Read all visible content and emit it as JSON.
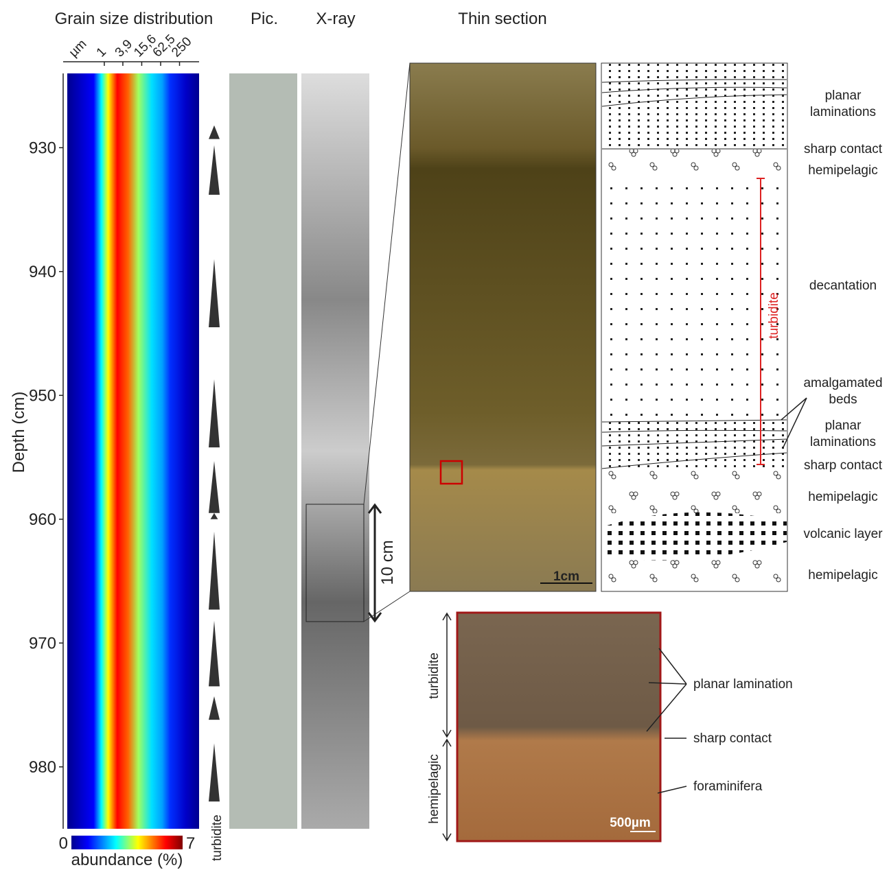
{
  "panels": {
    "grain_size": {
      "title": "Grain size distribution",
      "x_unit": "µm",
      "xscale": "log",
      "xlim": [
        0.066,
        1050
      ],
      "xticks": [
        1,
        {
          "value": 3.9,
          "label": "3,9"
        },
        {
          "value": 15.6,
          "label": "15,6"
        },
        {
          "value": 62.5,
          "label": "62,5"
        },
        250
      ],
      "y_label": "Depth (cm)",
      "ylim": [
        924,
        985
      ],
      "yticks": [
        930,
        940,
        950,
        960,
        970,
        980
      ],
      "colorbar": {
        "lim": [
          0,
          7
        ],
        "ticks": [
          0,
          7
        ],
        "label": "abundance (%)"
      },
      "turbidite_label": "turbidite",
      "turbidites": [
        [
          928.2,
          929.3
        ],
        [
          929.8,
          933.8
        ],
        [
          939.0,
          944.5
        ],
        [
          948.7,
          954.2
        ],
        [
          955.3,
          959.5
        ],
        [
          959.5,
          960.0
        ],
        [
          961.0,
          967.3
        ],
        [
          968.2,
          973.5
        ],
        [
          974.3,
          976.2
        ],
        [
          978.1,
          982.8
        ]
      ]
    },
    "pic": {
      "title": "Pic."
    },
    "xray": {
      "title": "X-ray",
      "scale_label": "10 cm"
    },
    "thin_section": {
      "title": "Thin section",
      "scale_label": "1cm"
    },
    "log": {
      "labels": [
        {
          "lines": [
            "planar",
            "laminations"
          ]
        },
        {
          "lines": [
            "sharp contact"
          ]
        },
        {
          "lines": [
            "hemipelagic"
          ]
        },
        {
          "lines": [
            "decantation"
          ]
        },
        {
          "lines": [
            "amalgamated",
            "beds"
          ]
        },
        {
          "lines": [
            "planar",
            "laminations"
          ]
        },
        {
          "lines": [
            "sharp contact"
          ]
        },
        {
          "lines": [
            "hemipelagic"
          ]
        },
        {
          "lines": [
            "volcanic layer"
          ]
        },
        {
          "lines": [
            "hemipelagic"
          ]
        }
      ],
      "turbidite_label": "turbidite"
    },
    "micro": {
      "left_labels": [
        "turbidite",
        "hemipelagic"
      ],
      "labels": [
        "planar lamination",
        "sharp contact",
        "foraminifera"
      ],
      "scale_label": "500µm"
    }
  }
}
